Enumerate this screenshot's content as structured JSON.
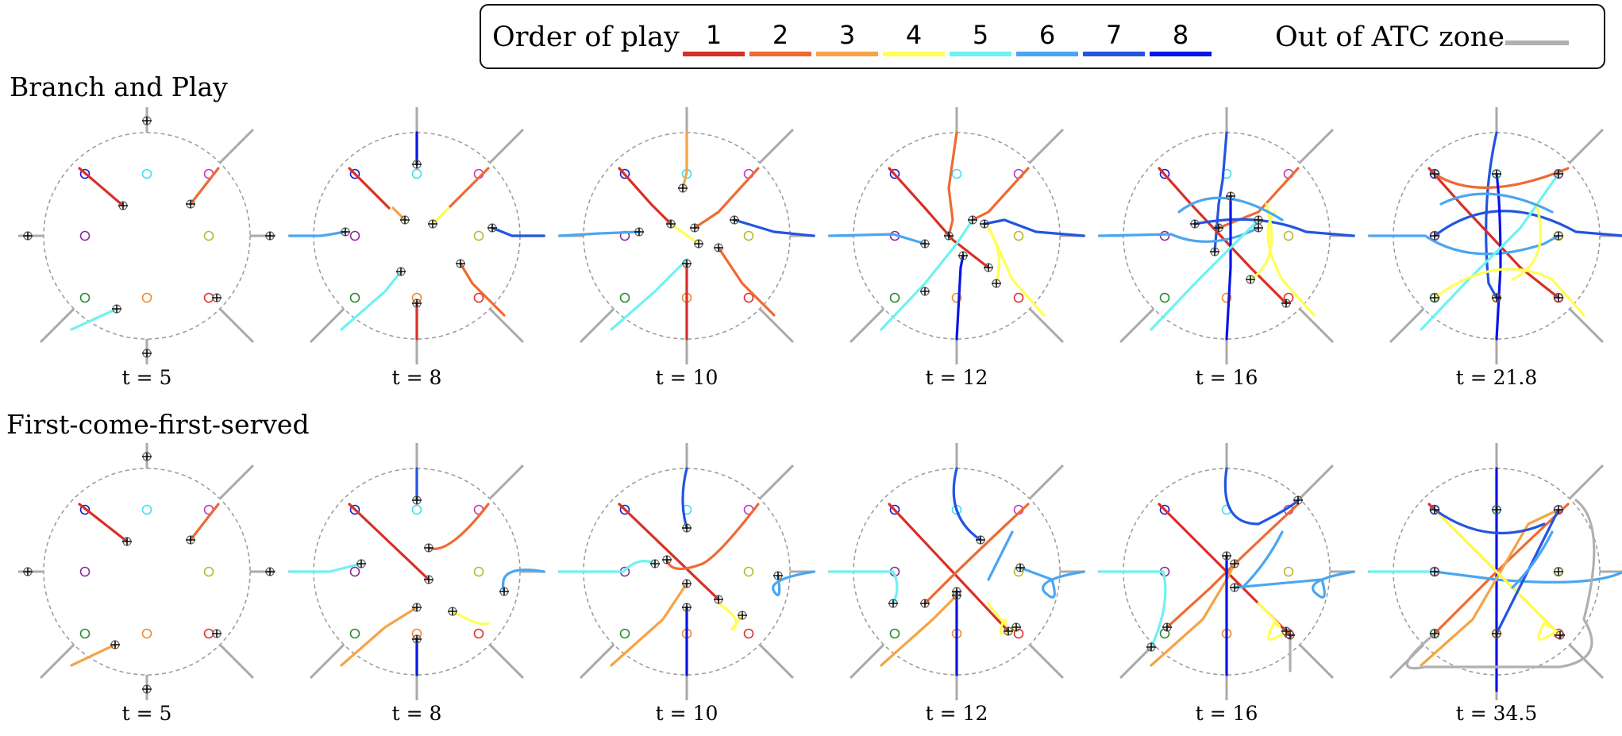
{
  "legend": {
    "title": "Order of play",
    "items": [
      {
        "label": "1",
        "color": "#d73027"
      },
      {
        "label": "2",
        "color": "#ee6a33"
      },
      {
        "label": "3",
        "color": "#f5a445"
      },
      {
        "label": "4",
        "color": "#ffff55"
      },
      {
        "label": "5",
        "color": "#6ef2f2"
      },
      {
        "label": "6",
        "color": "#4aa6f2"
      },
      {
        "label": "7",
        "color": "#2255e0"
      },
      {
        "label": "8",
        "color": "#0a14e6"
      }
    ],
    "out_label": "Out of ATC zone",
    "out_color": "#b0b0b0"
  },
  "rows": [
    {
      "title": "Branch and Play",
      "panels": [
        {
          "label": "t = 5"
        },
        {
          "label": "t = 8"
        },
        {
          "label": "t = 10"
        },
        {
          "label": "t = 12"
        },
        {
          "label": "t = 16"
        },
        {
          "label": "t = 21.8"
        }
      ]
    },
    {
      "title": "First-come-first-served",
      "panels": [
        {
          "label": "t = 5"
        },
        {
          "label": "t = 8"
        },
        {
          "label": "t = 10"
        },
        {
          "label": "t = 12"
        },
        {
          "label": "t = 16"
        },
        {
          "label": "t = 34.5"
        }
      ]
    }
  ],
  "goal_colors": [
    "#c03ac0",
    "#b8b830",
    "#e03030",
    "#f08a2a",
    "#2a8a2a",
    "#8a2a9a",
    "#1a1ad0",
    "#40e0f0"
  ],
  "zone_color": "#999999",
  "out_color": "#b0b0b0"
}
